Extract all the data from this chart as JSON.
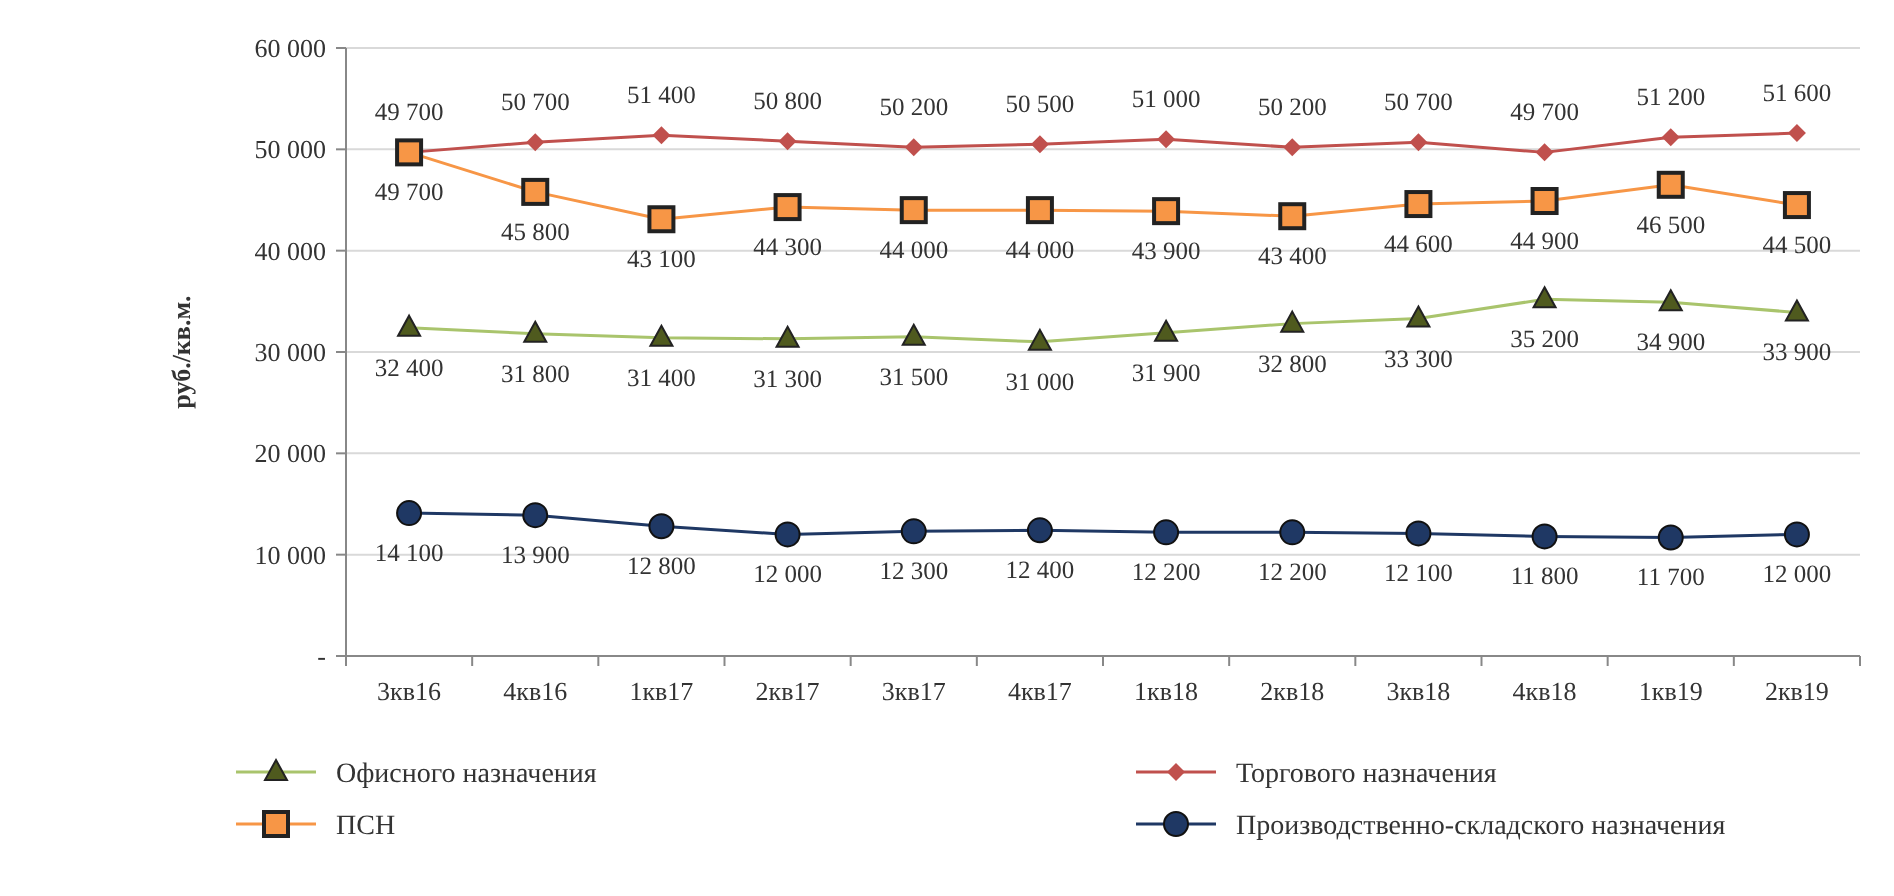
{
  "chart_data": {
    "type": "line",
    "ylabel": "руб./кв.м.",
    "categories": [
      "3кв16",
      "4кв16",
      "1кв17",
      "2кв17",
      "3кв17",
      "4кв17",
      "1кв18",
      "2кв18",
      "3кв18",
      "4кв18",
      "1кв19",
      "2кв19"
    ],
    "series": [
      {
        "name": "Офисного назначения",
        "color": "#a9c46c",
        "marker": "triangle",
        "values": [
          32400,
          31800,
          31400,
          31300,
          31500,
          31000,
          31900,
          32800,
          33300,
          35200,
          34900,
          33900
        ]
      },
      {
        "name": "Торгового назначения",
        "color": "#c0504d",
        "marker": "diamond",
        "values": [
          49700,
          50700,
          51400,
          50800,
          50200,
          50500,
          51000,
          50200,
          50700,
          49700,
          51200,
          51600
        ]
      },
      {
        "name": "ПСН",
        "color": "#f79646",
        "marker": "square",
        "values": [
          49700,
          45800,
          43100,
          44300,
          44000,
          44000,
          43900,
          43400,
          44600,
          44900,
          46500,
          44500
        ]
      },
      {
        "name": "Производственно-складского назначения",
        "color": "#1f3864",
        "marker": "circle",
        "values": [
          14100,
          13900,
          12800,
          12000,
          12300,
          12400,
          12200,
          12200,
          12100,
          11800,
          11700,
          12000
        ]
      }
    ],
    "ylim": [
      0,
      60000
    ],
    "yticks": [
      {
        "value": 0,
        "label": "-"
      },
      {
        "value": 10000,
        "label": "10 000"
      },
      {
        "value": 20000,
        "label": "20 000"
      },
      {
        "value": 30000,
        "label": "30 000"
      },
      {
        "value": 40000,
        "label": "40 000"
      },
      {
        "value": 50000,
        "label": "50 000"
      },
      {
        "value": 60000,
        "label": "60 000"
      }
    ],
    "grid": "y",
    "data_labels": true,
    "legend": "bottom",
    "line_style": "solid"
  }
}
